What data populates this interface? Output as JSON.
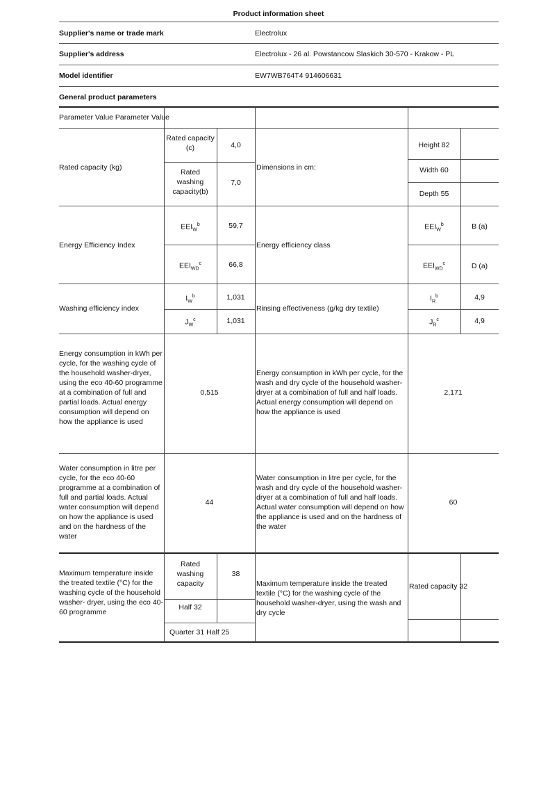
{
  "title": "Product information sheet",
  "header_rows": [
    {
      "label": "Supplier's name or trade mark",
      "value": "Electrolux"
    },
    {
      "label": "Supplier's address",
      "value": "Electrolux - 26 al. Powstancow Slaskich 30-570 - Krakow - PL"
    },
    {
      "label": "Model identifier",
      "value": "EW7WB764T4 914606631"
    },
    {
      "label": "General product parameters"
    }
  ],
  "table": {
    "header": "Parameter Value Parameter Value",
    "rated_capacity": {
      "label": "Rated capacity (kg)",
      "sub1": "Rated capacity (c)",
      "val1": "4,0",
      "sub2": "Rated washing capacity(b)",
      "val2": "7,0",
      "right_label": "Dimensions in cm:",
      "height": "Height 82",
      "width": "Width 60",
      "depth": "Depth 55"
    },
    "eei": {
      "label": "Energy Efficiency Index",
      "sub1": "EEI",
      "sub1_sub": "W",
      "sub1_sup": "b",
      "val1": "59,7",
      "sub2": "EEI",
      "sub2_sub": "WD",
      "sub2_sup": "c",
      "val2": "66,8",
      "right_label": "Energy efficiency class",
      "r1": "EEI",
      "r1_sub": "W",
      "r1_sup": "b",
      "rv1": "B (a)",
      "r2": "EEI",
      "r2_sub": "WD",
      "r2_sup": "c",
      "rv2": "D (a)"
    },
    "wei": {
      "label": "Washing efficiency index",
      "sub1": "I",
      "sub1_sub": "W",
      "sub1_sup": "b",
      "val1": "1,031",
      "sub2": "J",
      "sub2_sub": "W",
      "sub2_sup": "c",
      "val2": "1,031",
      "right_label": "Rinsing effectiveness (g/kg dry textile)",
      "r1": "I",
      "r1_sub": "R",
      "r1_sup": "b",
      "rv1": "4,9",
      "r2": "J",
      "r2_sub": "R",
      "r2_sup": "c",
      "rv2": "4,9"
    },
    "energy": {
      "label": "Energy consumption in kWh per cycle, for the washing cycle of the household washer-dryer, using the eco 40-60 programme at a combination of full and partial loads. Actual energy consumption will depend on how the appliance is used",
      "value": "0,515",
      "right_label": "Energy consumption in kWh per cycle, for the wash and dry cycle of the household washer-dryer at a combination of full and half loads. Actual energy consumption will depend on how the appliance is used",
      "right_value": "2,171"
    },
    "water": {
      "label": "Water consumption in litre per cycle, for the eco 40-60 programme at a combination of full and partial loads. Actual water consumption will depend on how the appliance is used and on the hardness of the water",
      "value": "44",
      "right_label": "Water consumption in litre per cycle, for the wash and dry cycle of the household washer-dryer at a combination of full and half loads. Actual water consumption will depend on how the appliance is used and on the hardness of the water",
      "right_value": "60"
    },
    "temp": {
      "label": "Maximum temperature inside the treated textile (°C) for the washing cycle of the household washer- dryer, using the eco 40-60 programme",
      "sub1": "Rated washing capacity",
      "val1": "38",
      "sub2": "Half 32",
      "sub3": "Quarter 31 Half 25",
      "right_label": "Maximum temperature inside the treated textile (°C) for the washing cycle of the household washer-dryer, using the wash and dry cycle",
      "right_value": "Rated capacity 32"
    }
  }
}
